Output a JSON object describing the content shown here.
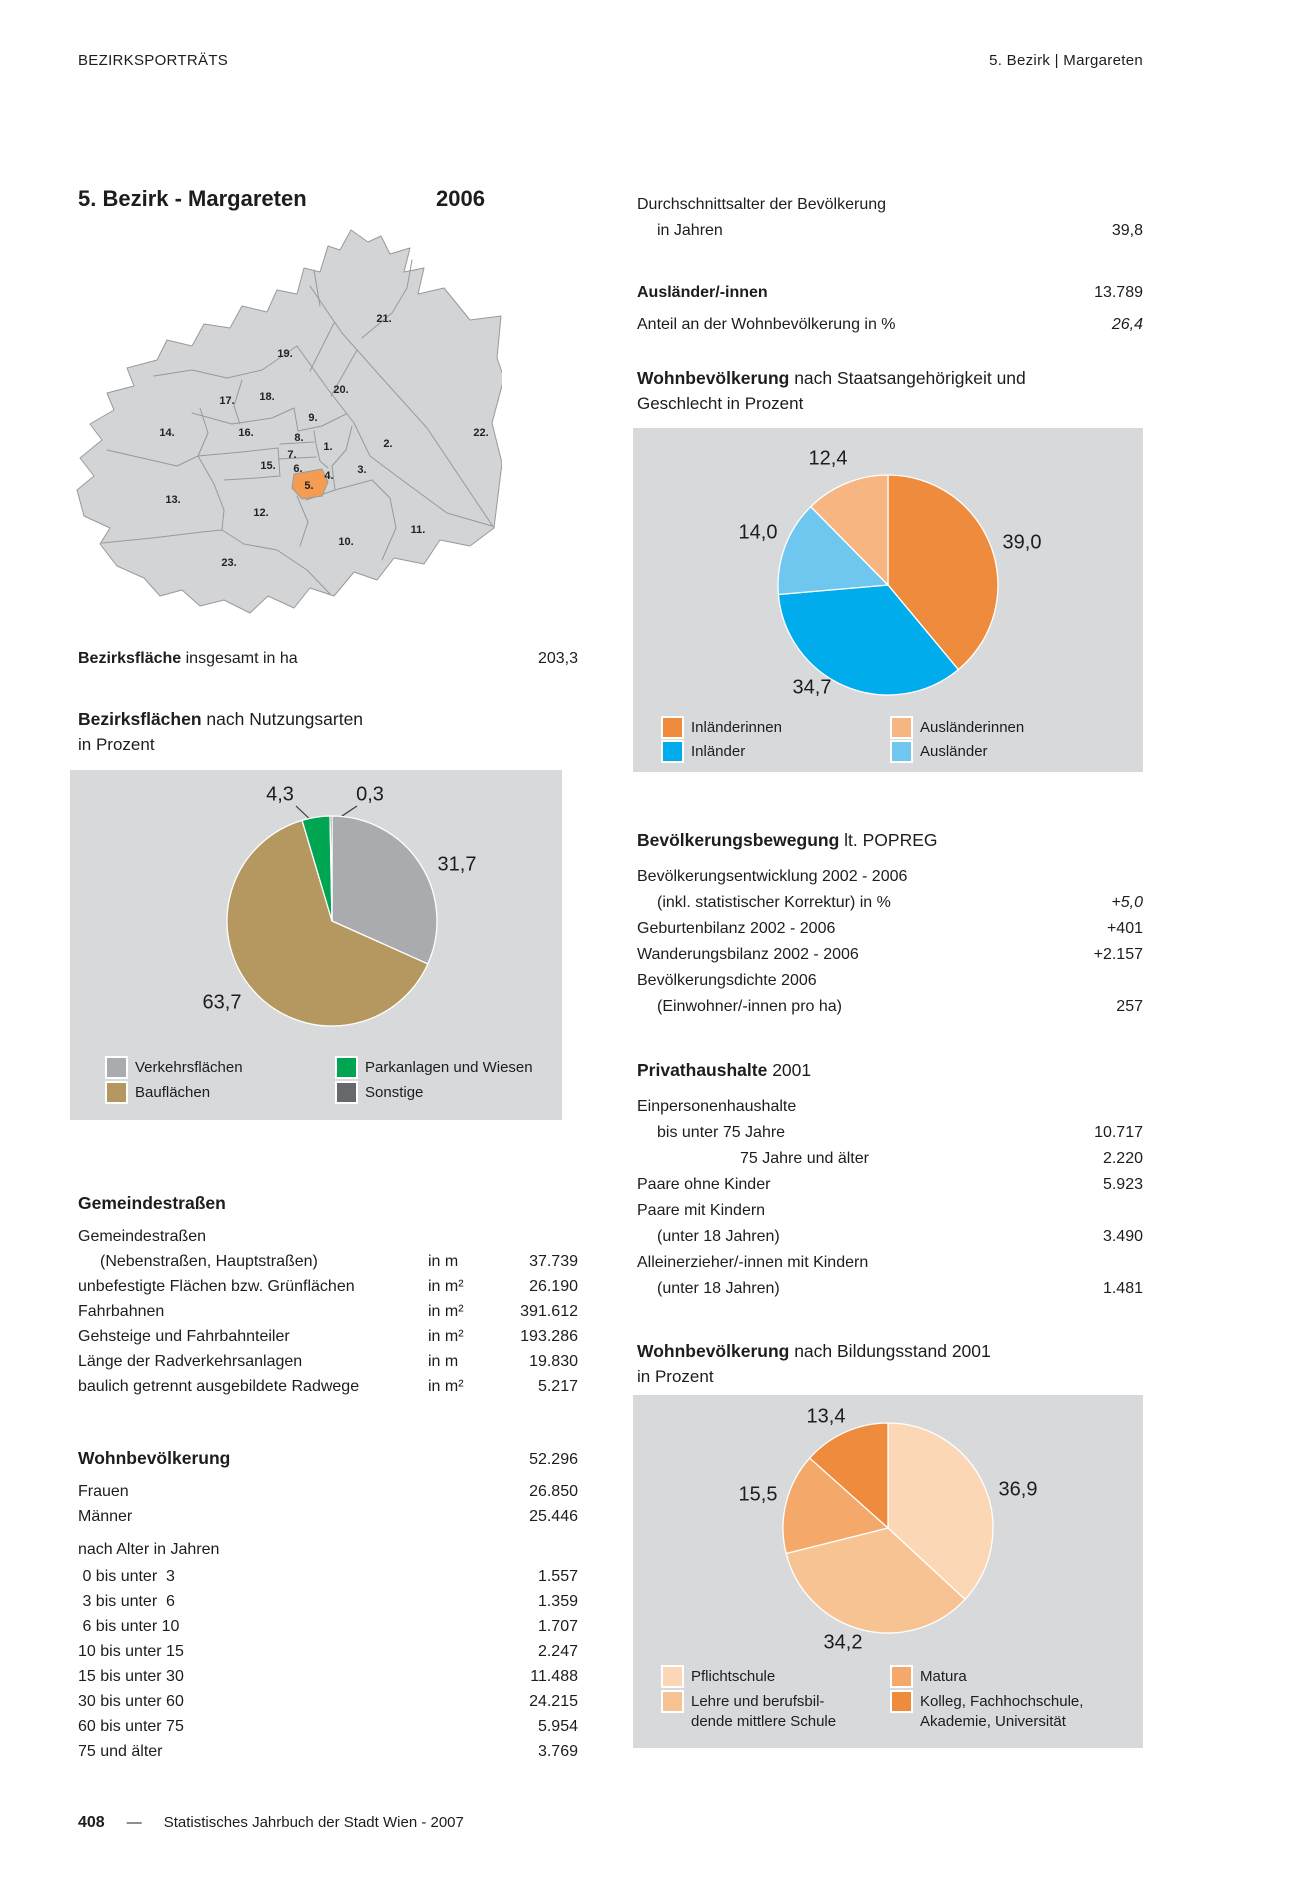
{
  "header": {
    "left": "BEZIRKSPORTRÄTS",
    "right": "5. Bezirk | Margareten"
  },
  "title": {
    "name": "5. Bezirk - Margareten",
    "year": "2006"
  },
  "map": {
    "highlight_district": "5.",
    "highlight_color": "#f49c52",
    "labels": [
      "1.",
      "2.",
      "3.",
      "4.",
      "5.",
      "6.",
      "7.",
      "8.",
      "9.",
      "10.",
      "11.",
      "12.",
      "13.",
      "14.",
      "15.",
      "16.",
      "17.",
      "18.",
      "19.",
      "20.",
      "21.",
      "22.",
      "23."
    ]
  },
  "left": {
    "area_row": {
      "bold": "Bezirksfläche",
      "rest": "insgesamt in ha",
      "value": "203,3"
    },
    "landuse_title": {
      "bold": "Bezirksflächen",
      "rest": "nach Nutzungsarten",
      "line2": "in Prozent"
    },
    "streets": {
      "title": "Gemeindestraßen",
      "rows": [
        {
          "label": "Gemeindestraßen",
          "unit": "",
          "value": ""
        },
        {
          "label": "(Nebenstraßen, Hauptstraßen)",
          "unit": "in m",
          "value": "37.739"
        },
        {
          "label": "unbefestigte Flächen bzw. Grünflächen",
          "unit": "in m²",
          "value": "26.190"
        },
        {
          "label": "Fahrbahnen",
          "unit": "in m²",
          "value": "391.612"
        },
        {
          "label": "Gehsteige und Fahrbahnteiler",
          "unit": "in m²",
          "value": "193.286"
        },
        {
          "label": "Länge der Radverkehrsanlagen",
          "unit": "in m",
          "value": "19.830"
        },
        {
          "label": "baulich getrennt ausgebildete Radwege",
          "unit": "in m²",
          "value": "5.217"
        }
      ]
    },
    "population": {
      "title": "Wohnbevölkerung",
      "value": "52.296",
      "rows": [
        {
          "label": "Frauen",
          "value": "26.850"
        },
        {
          "label": "Männer",
          "value": "25.446"
        }
      ],
      "age_title": "nach Alter in Jahren",
      "age_rows": [
        {
          "label": " 0 bis unter  3",
          "value": "1.557"
        },
        {
          "label": " 3 bis unter  6",
          "value": "1.359"
        },
        {
          "label": " 6 bis unter 10",
          "value": "1.707"
        },
        {
          "label": "10 bis unter 15",
          "value": "2.247"
        },
        {
          "label": "15 bis unter 30",
          "value": "11.488"
        },
        {
          "label": "30 bis unter 60",
          "value": "24.215"
        },
        {
          "label": "60 bis unter 75",
          "value": "5.954"
        },
        {
          "label": "75 und älter",
          "value": "3.769"
        }
      ]
    }
  },
  "right": {
    "avg_age": {
      "line1": "Durchschnittsalter der Bevölkerung",
      "line2": "in Jahren",
      "value": "39,8"
    },
    "foreigners": {
      "label": "Ausländer/-innen",
      "value": "13.789"
    },
    "foreigners_share": {
      "label": "Anteil an der Wohnbevölkerung in %",
      "value": "26,4"
    },
    "nationality_title": {
      "bold": "Wohnbevölkerung",
      "rest": "nach Staatsangehörigkeit und",
      "line2": "Geschlecht in Prozent"
    },
    "popreg": {
      "title_bold": "Bevölkerungsbewegung",
      "title_rest": "lt. POPREG",
      "rows": [
        {
          "label": "Bevölkerungsentwicklung 2002 - 2006",
          "value": ""
        },
        {
          "label": "(inkl. statistischer Korrektur) in %",
          "value": "+5,0"
        },
        {
          "label": "Geburtenbilanz 2002 - 2006",
          "value": "+401"
        },
        {
          "label": "Wanderungsbilanz 2002 - 2006",
          "value": "+2.157"
        },
        {
          "label": "Bevölkerungsdichte 2006",
          "value": ""
        },
        {
          "label": "(Einwohner/-innen pro ha)",
          "value": "257"
        }
      ]
    },
    "households": {
      "title_bold": "Privathaushalte",
      "title_rest": "2001",
      "rows": [
        {
          "label": "Einpersonenhaushalte",
          "value": ""
        },
        {
          "label": "bis unter 75 Jahre",
          "value": "10.717"
        },
        {
          "label": "75 Jahre und älter",
          "value": "2.220"
        },
        {
          "label": "Paare ohne Kinder",
          "value": "5.923"
        },
        {
          "label": "Paare mit Kindern",
          "value": ""
        },
        {
          "label": "(unter 18 Jahren)",
          "value": "3.490"
        },
        {
          "label": "Alleinerzieher/-innen mit Kindern",
          "value": ""
        },
        {
          "label": "(unter 18 Jahren)",
          "value": "1.481"
        }
      ]
    },
    "education_title": {
      "bold": "Wohnbevölkerung",
      "rest": "nach Bildungsstand 2001",
      "line2": "in Prozent"
    }
  },
  "chart_data": [
    {
      "type": "pie",
      "name": "bezirksflaechen-nach-nutzungsarten",
      "title": "Bezirksflächen nach Nutzungsarten in Prozent",
      "unit": "percent",
      "start": "12-oclock-clockwise",
      "slices": [
        {
          "label": "Verkehrsflächen",
          "value": 31.7,
          "display": "31,7",
          "color": "#a9abae"
        },
        {
          "label": "Bauflächen",
          "value": 63.7,
          "display": "63,7",
          "color": "#b59760"
        },
        {
          "label": "Parkanlagen und Wiesen",
          "value": 4.3,
          "display": "4,3",
          "color": "#00a551"
        },
        {
          "label": "Sonstige",
          "value": 0.3,
          "display": "0,3",
          "color": "#66686b"
        }
      ],
      "legend": {
        "col1": [
          {
            "line1": "Verkehrsflächen",
            "color": "#a9abae"
          },
          {
            "line1": "Bauflächen",
            "color": "#b59760"
          }
        ],
        "col2": [
          {
            "line1": "Parkanlagen und Wiesen",
            "color": "#00a551"
          },
          {
            "line1": "Sonstige",
            "color": "#66686b"
          }
        ]
      }
    },
    {
      "type": "pie",
      "name": "wohnbevoelkerung-staatsangehoerigkeit-geschlecht",
      "title": "Wohnbevölkerung nach Staatsangehörigkeit und Geschlecht in Prozent",
      "unit": "percent",
      "start": "12-oclock-clockwise",
      "slices": [
        {
          "label": "Inländerinnen",
          "value": 39.0,
          "display": "39,0",
          "color": "#ef8b3d"
        },
        {
          "label": "Inländer",
          "value": 34.7,
          "display": "34,7",
          "color": "#00acec"
        },
        {
          "label": "Ausländer",
          "value": 14.0,
          "display": "14,0",
          "color": "#6fc7f0"
        },
        {
          "label": "Ausländerinnen",
          "value": 12.4,
          "display": "12,4",
          "color": "#f7b581"
        }
      ],
      "legend": {
        "col1": [
          {
            "line1": "Inländerinnen",
            "color": "#ef8b3d"
          },
          {
            "line1": "Inländer",
            "color": "#00acec"
          }
        ],
        "col2": [
          {
            "line1": "Ausländerinnen",
            "color": "#f7b581"
          },
          {
            "line1": "Ausländer",
            "color": "#6fc7f0"
          }
        ]
      }
    },
    {
      "type": "pie",
      "name": "wohnbevoelkerung-bildungsstand",
      "title": "Wohnbevölkerung nach Bildungsstand 2001 in Prozent",
      "unit": "percent",
      "start": "12-oclock-clockwise",
      "slices": [
        {
          "label": "Pflichtschule",
          "value": 36.9,
          "display": "36,9",
          "color": "#fbd7b5"
        },
        {
          "label": "Lehre und berufsbildende mittlere Schule",
          "value": 34.2,
          "display": "34,2",
          "color": "#f8c392"
        },
        {
          "label": "Matura",
          "value": 15.5,
          "display": "15,5",
          "color": "#f4a96a"
        },
        {
          "label": "Kolleg, Fachhochschule, Akademie, Universität",
          "value": 13.4,
          "display": "13,4",
          "color": "#ef8b3d"
        }
      ],
      "legend": {
        "col1": [
          {
            "line1": "Pflichtschule",
            "color": "#fbd7b5"
          },
          {
            "line1": "Lehre und berufsbil-",
            "line2": "dende mittlere Schule",
            "color": "#f8c392"
          }
        ],
        "col2": [
          {
            "line1": "Matura",
            "color": "#f4a96a"
          },
          {
            "line1": "Kolleg, Fachhochschule,",
            "line2": "Akademie, Universität",
            "color": "#ef8b3d"
          }
        ]
      }
    }
  ],
  "footer": {
    "page": "408",
    "dash": "—",
    "text": "Statistisches Jahrbuch der Stadt Wien - 2007"
  }
}
